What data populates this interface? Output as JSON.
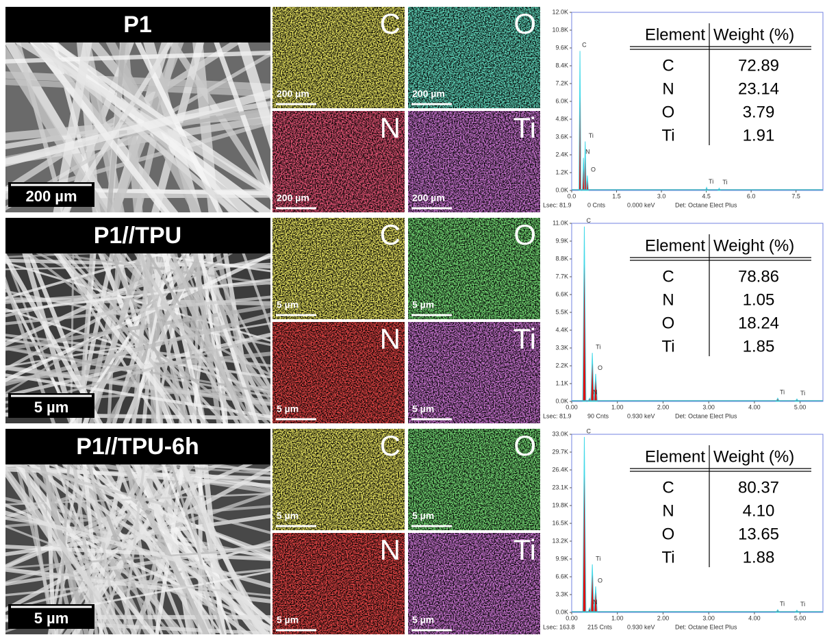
{
  "panels": [
    {
      "sample": "P1",
      "sem_scale": "200 µm",
      "sem_tone": "#6a6a6a",
      "maps": [
        {
          "element": "C",
          "scale": "200 µm",
          "color": "#d8d020"
        },
        {
          "element": "O",
          "scale": "200 µm",
          "color": "#20b888"
        },
        {
          "element": "N",
          "scale": "200 µm",
          "color": "#d01830"
        },
        {
          "element": "Ti",
          "scale": "200 µm",
          "color": "#a030b0"
        }
      ],
      "spectrum": {
        "xlim": [
          0,
          8.4
        ],
        "ylim": [
          0,
          12000
        ],
        "xticks": [
          {
            "value": 0,
            "label": "0.0"
          },
          1.5,
          {
            "value": 3,
            "label": "3.0"
          },
          4.5,
          {
            "value": 6,
            "label": "6.0"
          },
          7.5
        ],
        "yticks": [
          {
            "value": 0,
            "label": "0.0K"
          },
          {
            "value": 1200,
            "label": "1.2K"
          },
          {
            "value": 2400,
            "label": "2.4K"
          },
          {
            "value": 3600,
            "label": "3.6K"
          },
          {
            "value": 4800,
            "label": "4.8K"
          },
          {
            "value": 6000,
            "label": "6.0K"
          },
          {
            "value": 7200,
            "label": "7.2K"
          },
          {
            "value": 8400,
            "label": "8.4K"
          },
          {
            "value": 9600,
            "label": "9.6K"
          },
          {
            "value": 10800,
            "label": "10.8K"
          },
          {
            "value": 12000,
            "label": "12.0K"
          }
        ],
        "peaks": [
          {
            "label": "C",
            "x": 0.277,
            "height": 9400
          },
          {
            "label": "Ti",
            "x": 0.452,
            "height": 3300
          },
          {
            "label": "N",
            "x": 0.392,
            "height": 2200
          },
          {
            "label": "O",
            "x": 0.525,
            "height": 1000
          },
          {
            "label": "Ti",
            "x": 4.51,
            "height": 200
          },
          {
            "label": "Ti",
            "x": 4.93,
            "height": 150
          }
        ],
        "footer": [
          "Lsec: 81.9",
          "0 Cnts",
          "0.000 keV",
          "Det: Octane Elect Plus"
        ]
      },
      "table": {
        "header": [
          "Element",
          "Weight (%)"
        ],
        "rows": [
          [
            "C",
            "72.89"
          ],
          [
            "N",
            "23.14"
          ],
          [
            "O",
            "3.79"
          ],
          [
            "Ti",
            "1.91"
          ]
        ]
      }
    },
    {
      "sample": "P1//TPU",
      "sem_scale": "5 µm",
      "sem_tone": "#3c3c3c",
      "maps": [
        {
          "element": "C",
          "scale": "5 µm",
          "color": "#d8d020"
        },
        {
          "element": "O",
          "scale": "5 µm",
          "color": "#30c030"
        },
        {
          "element": "N",
          "scale": "5 µm",
          "color": "#d01010"
        },
        {
          "element": "Ti",
          "scale": "5 µm",
          "color": "#a030b0"
        }
      ],
      "spectrum": {
        "xlim": [
          0,
          5.5
        ],
        "ylim": [
          0,
          11000
        ],
        "xticks": [
          {
            "value": 0,
            "label": "0.00"
          },
          {
            "value": 1,
            "label": "1.00"
          },
          {
            "value": 2,
            "label": "2.00"
          },
          {
            "value": 3,
            "label": "3.00"
          },
          {
            "value": 4,
            "label": "4.00"
          },
          {
            "value": 5,
            "label": "5.00"
          }
        ],
        "yticks": [
          {
            "value": 0,
            "label": "0.0K"
          },
          {
            "value": 1100,
            "label": "1.1K"
          },
          {
            "value": 2200,
            "label": "2.2K"
          },
          {
            "value": 3300,
            "label": "3.3K"
          },
          {
            "value": 4400,
            "label": "4.4K"
          },
          {
            "value": 5500,
            "label": "5.5K"
          },
          {
            "value": 6600,
            "label": "6.6K"
          },
          {
            "value": 7700,
            "label": "7.7K"
          },
          {
            "value": 8800,
            "label": "8.8K"
          },
          {
            "value": 9900,
            "label": "9.9K"
          },
          {
            "value": 11000,
            "label": "11.0K"
          }
        ],
        "peaks": [
          {
            "label": "C",
            "x": 0.277,
            "height": 10800
          },
          {
            "label": "Ti",
            "x": 0.452,
            "height": 3000
          },
          {
            "label": "O",
            "x": 0.525,
            "height": 1700
          },
          {
            "label": "N",
            "x": 0.392,
            "height": 200
          },
          {
            "label": "Ti",
            "x": 4.51,
            "height": 200
          },
          {
            "label": "Ti",
            "x": 4.93,
            "height": 150
          }
        ],
        "footer": [
          "Lsec: 81.9",
          "90 Cnts",
          "0.930 keV",
          "Det: Octane Elect Plus"
        ]
      },
      "table": {
        "header": [
          "Element",
          "Weight (%)"
        ],
        "rows": [
          [
            "C",
            "78.86"
          ],
          [
            "N",
            "1.05"
          ],
          [
            "O",
            "18.24"
          ],
          [
            "Ti",
            "1.85"
          ]
        ]
      }
    },
    {
      "sample": "P1//TPU-6h",
      "sem_scale": "5 µm",
      "sem_tone": "#484848",
      "maps": [
        {
          "element": "C",
          "scale": "5 µm",
          "color": "#d8d020"
        },
        {
          "element": "O",
          "scale": "5 µm",
          "color": "#30c030"
        },
        {
          "element": "N",
          "scale": "5 µm",
          "color": "#d01010"
        },
        {
          "element": "Ti",
          "scale": "5 µm",
          "color": "#a030b0"
        }
      ],
      "spectrum": {
        "xlim": [
          0,
          5.5
        ],
        "ylim": [
          0,
          33000
        ],
        "xticks": [
          {
            "value": 0,
            "label": "0.00"
          },
          {
            "value": 1,
            "label": "1.00"
          },
          {
            "value": 2,
            "label": "2.00"
          },
          {
            "value": 3,
            "label": "3.00"
          },
          {
            "value": 4,
            "label": "4.00"
          },
          {
            "value": 5,
            "label": "5.00"
          }
        ],
        "yticks": [
          {
            "value": 0,
            "label": "0.0K"
          },
          {
            "value": 3300,
            "label": "3.3K"
          },
          {
            "value": 6600,
            "label": "6.6K"
          },
          {
            "value": 9900,
            "label": "9.9K"
          },
          {
            "value": 13200,
            "label": "13.2K"
          },
          {
            "value": 16500,
            "label": "16.5K"
          },
          {
            "value": 19800,
            "label": "19.8K"
          },
          {
            "value": 23100,
            "label": "23.1K"
          },
          {
            "value": 26400,
            "label": "26.4K"
          },
          {
            "value": 29700,
            "label": "29.7K"
          },
          {
            "value": 33000,
            "label": "33.0K"
          }
        ],
        "peaks": [
          {
            "label": "C",
            "x": 0.277,
            "height": 32500
          },
          {
            "label": "Ti",
            "x": 0.452,
            "height": 8900
          },
          {
            "label": "O",
            "x": 0.525,
            "height": 4800
          },
          {
            "label": "N",
            "x": 0.392,
            "height": 800
          },
          {
            "label": "Ti",
            "x": 4.51,
            "height": 500
          },
          {
            "label": "Ti",
            "x": 4.93,
            "height": 400
          }
        ],
        "footer": [
          "Lsec: 163.8",
          "215 Cnts",
          "0.930 keV",
          "Det: Octane Elect Plus"
        ]
      },
      "table": {
        "header": [
          "Element",
          "Weight (%)"
        ],
        "rows": [
          [
            "C",
            "80.37"
          ],
          [
            "N",
            "4.10"
          ],
          [
            "O",
            "13.65"
          ],
          [
            "Ti",
            "1.88"
          ]
        ]
      }
    }
  ]
}
